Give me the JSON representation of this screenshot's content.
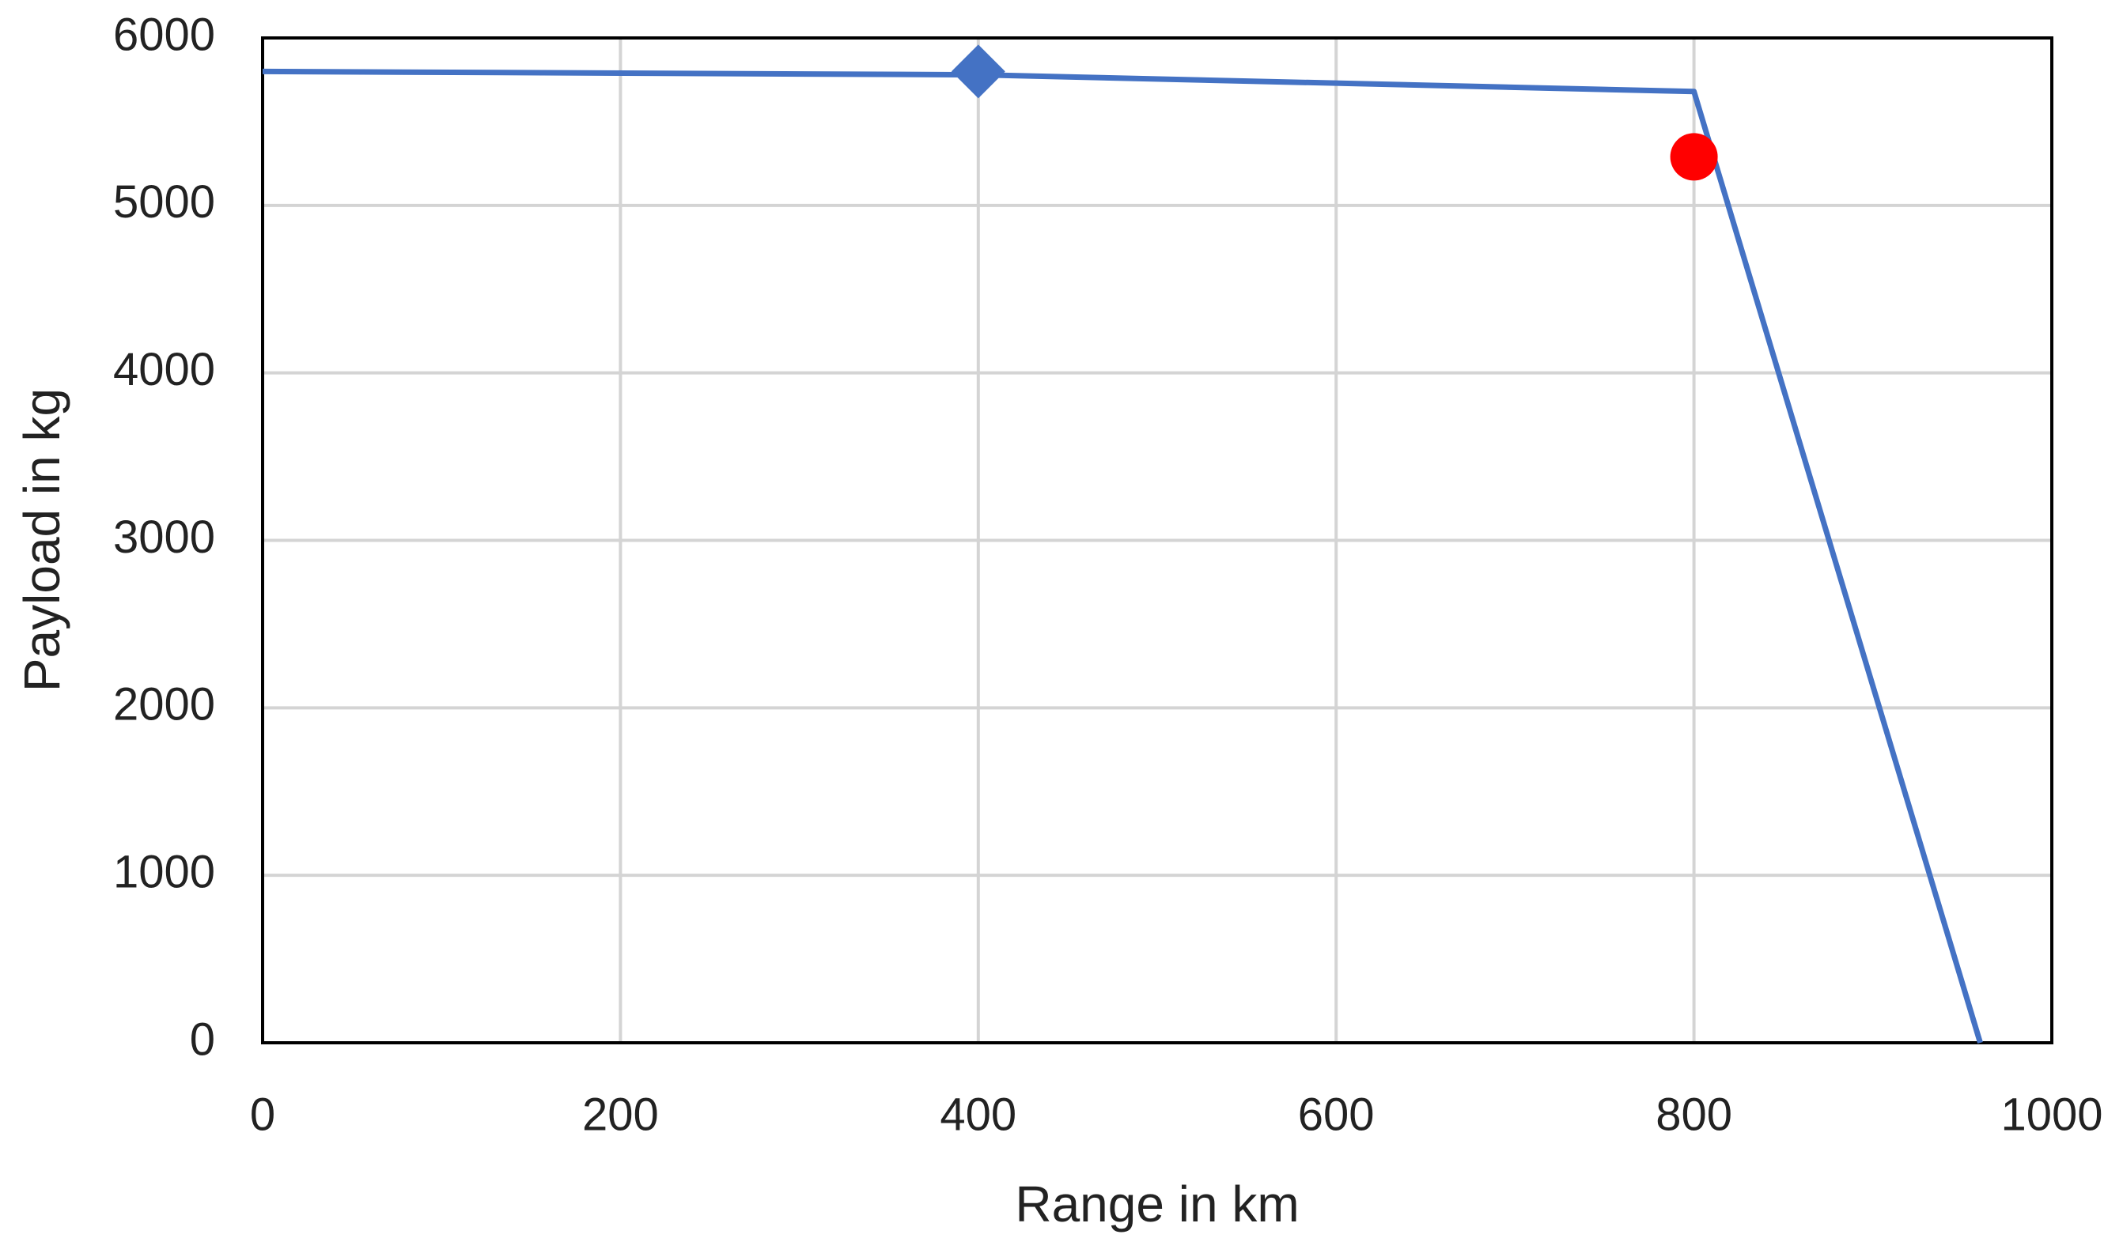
{
  "chart_data": {
    "type": "line",
    "x_label": "Range in km",
    "y_label": "Payload in kg",
    "xlim": [
      0,
      1000
    ],
    "xticks": [
      0,
      200,
      400,
      600,
      800,
      1000
    ],
    "ylim": [
      0,
      6000
    ],
    "yticks": [
      0,
      1000,
      2000,
      3000,
      4000,
      5000,
      6000
    ],
    "grid": true,
    "series": [
      {
        "color": "#4472c4",
        "marker": "none",
        "x": [
          0,
          400,
          800,
          960
        ],
        "values": [
          5800,
          5780,
          5680,
          0
        ]
      },
      {
        "color": "#4472c4",
        "marker": "diamond",
        "x": [
          400
        ],
        "values": [
          5800
        ]
      },
      {
        "color": "#ff0000",
        "marker": "circle",
        "x": [
          800
        ],
        "values": [
          5290
        ]
      }
    ]
  }
}
